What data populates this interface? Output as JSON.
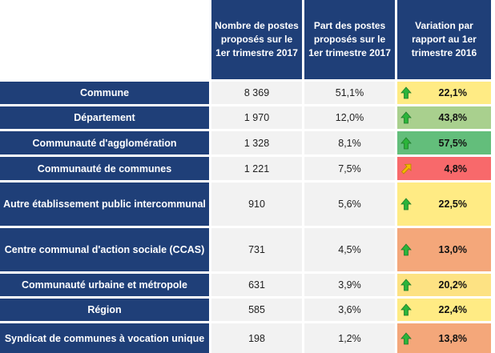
{
  "table": {
    "headers": [
      "Nombre de postes proposés sur le 1er trimestre 2017",
      "Part des postes proposés sur le 1er trimestre 2017",
      "Variation par rapport au 1er trimestre 2016"
    ],
    "rows": [
      {
        "label": "Commune",
        "count": "8 369",
        "share": "51,1%",
        "variation": "22,1%",
        "trend": "up",
        "trend_icon": "green-up-arrow-icon",
        "color": "#ffeb84"
      },
      {
        "label": "Département",
        "count": "1 970",
        "share": "12,0%",
        "variation": "43,8%",
        "trend": "up",
        "trend_icon": "green-up-arrow-icon",
        "color": "#a9d08e"
      },
      {
        "label": "Communauté d'agglomération",
        "count": "1 328",
        "share": "8,1%",
        "variation": "57,5%",
        "trend": "up",
        "trend_icon": "green-up-arrow-icon",
        "color": "#63be7b"
      },
      {
        "label": "Communauté de communes",
        "count": "1 221",
        "share": "7,5%",
        "variation": "4,8%",
        "trend": "up-right",
        "trend_icon": "yellow-diagonal-arrow-icon",
        "color": "#f8696b"
      },
      {
        "label": "Autre établissement public intercommunal",
        "count": "910",
        "share": "5,6%",
        "variation": "22,5%",
        "trend": "up",
        "trend_icon": "green-up-arrow-icon",
        "color": "#ffeb84"
      },
      {
        "label": "Centre communal d'action sociale (CCAS)",
        "count": "731",
        "share": "4,5%",
        "variation": "13,0%",
        "trend": "up",
        "trend_icon": "green-up-arrow-icon",
        "color": "#f4a77a"
      },
      {
        "label": "Communauté urbaine et métropole",
        "count": "631",
        "share": "3,9%",
        "variation": "20,2%",
        "trend": "up",
        "trend_icon": "green-up-arrow-icon",
        "color": "#fde283"
      },
      {
        "label": "Région",
        "count": "585",
        "share": "3,6%",
        "variation": "22,4%",
        "trend": "up",
        "trend_icon": "green-up-arrow-icon",
        "color": "#ffeb84"
      },
      {
        "label": "Syndicat de communes à vocation unique",
        "count": "198",
        "share": "1,2%",
        "variation": "13,8%",
        "trend": "up",
        "trend_icon": "green-up-arrow-icon",
        "color": "#f4a77a"
      }
    ]
  },
  "colors": {
    "header_bg": "#1f3f78",
    "count_bg": "#f2f2f2",
    "up_arrow": "#2bb43a",
    "diagonal_arrow": "#f5b800"
  }
}
